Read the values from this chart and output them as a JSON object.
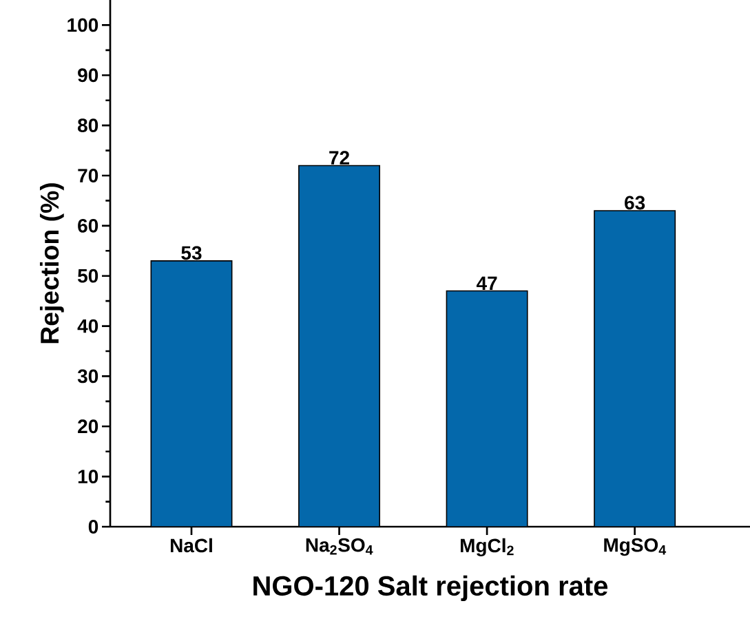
{
  "chart_data": {
    "type": "bar",
    "xlabel": "NGO-120 Salt rejection rate",
    "ylabel": "Rejection (%)",
    "categories": [
      "NaCl",
      "Na$_{2}$SO$_{4}$",
      "MgCl$_{2}$",
      "MgSO$_{4}$"
    ],
    "values": [
      53,
      72,
      47,
      63
    ],
    "color": "#0468ab",
    "ylim": [
      0,
      105
    ],
    "yticks": [
      0,
      10,
      20,
      30,
      40,
      50,
      60,
      70,
      80,
      90,
      100
    ],
    "data_labels": true
  }
}
